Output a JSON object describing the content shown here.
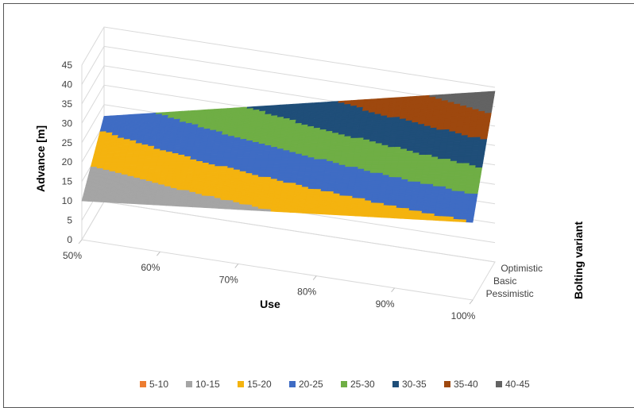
{
  "chart_data": {
    "type": "surface",
    "title": "",
    "xlabel": "Use",
    "ylabel": "Bolting variant",
    "zlabel": "Advance [m]",
    "x": [
      "50%",
      "60%",
      "70%",
      "80%",
      "90%",
      "100%"
    ],
    "y": [
      "Pessimistic",
      "Basic",
      "Optimistic"
    ],
    "z_ticks": [
      "0",
      "5",
      "10",
      "15",
      "20",
      "25",
      "30",
      "35",
      "40",
      "45"
    ],
    "zlim": [
      0,
      45
    ],
    "legend_position": "bottom",
    "bands": [
      {
        "name": "5-10",
        "color": "#ED7D31"
      },
      {
        "name": "10-15",
        "color": "#A5A5A5"
      },
      {
        "name": "15-20",
        "color": "#F4B30F"
      },
      {
        "name": "20-25",
        "color": "#3F6CC4"
      },
      {
        "name": "25-30",
        "color": "#6FAE45"
      },
      {
        "name": "30-35",
        "color": "#1F4E79"
      },
      {
        "name": "35-40",
        "color": "#9E480E"
      },
      {
        "name": "40-45",
        "color": "#636363"
      }
    ],
    "surface": [
      {
        "x": "50%",
        "y": "Pessimistic",
        "z": 10
      },
      {
        "x": "100%",
        "y": "Pessimistic",
        "z": 20
      },
      {
        "x": "50%",
        "y": "Optimistic",
        "z": 22
      },
      {
        "x": "100%",
        "y": "Optimistic",
        "z": 44
      }
    ]
  }
}
